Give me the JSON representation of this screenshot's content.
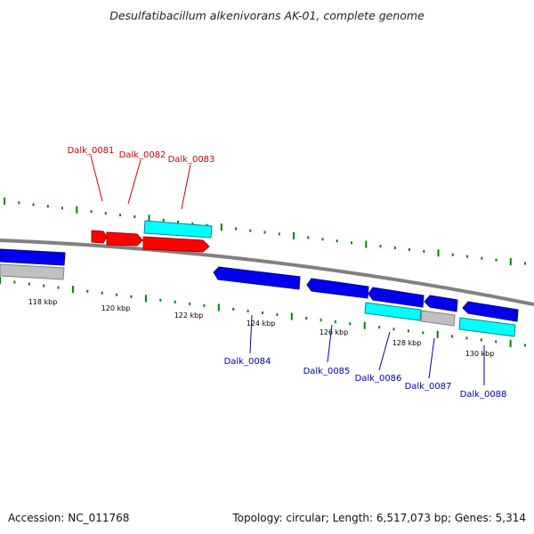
{
  "title": "Desulfatibacillum alkenivorans AK-01, complete genome",
  "footer": {
    "accession": "Accession: NC_011768",
    "summary": "Topology: circular; Length: 6,517,073 bp; Genes: 5,314"
  },
  "colors": {
    "backbone": "#808080",
    "tick": "#008000",
    "forward_label": "#cc0000",
    "reverse_label": "#0000aa",
    "gene_red": "#ff0000",
    "gene_blue": "#0000ee",
    "gene_cyan": "#00ffff",
    "gene_gray": "#c0c0c0"
  },
  "kbp_labels": [
    "118 kbp",
    "120 kbp",
    "122 kbp",
    "124 kbp",
    "126 kbp",
    "128 kbp",
    "130 kbp"
  ],
  "forward_gene_labels": [
    "Dalk_0081",
    "Dalk_0082",
    "Dalk_0083"
  ],
  "reverse_gene_labels": [
    "Dalk_0084",
    "Dalk_0085",
    "Dalk_0086",
    "Dalk_0087",
    "Dalk_0088"
  ]
}
